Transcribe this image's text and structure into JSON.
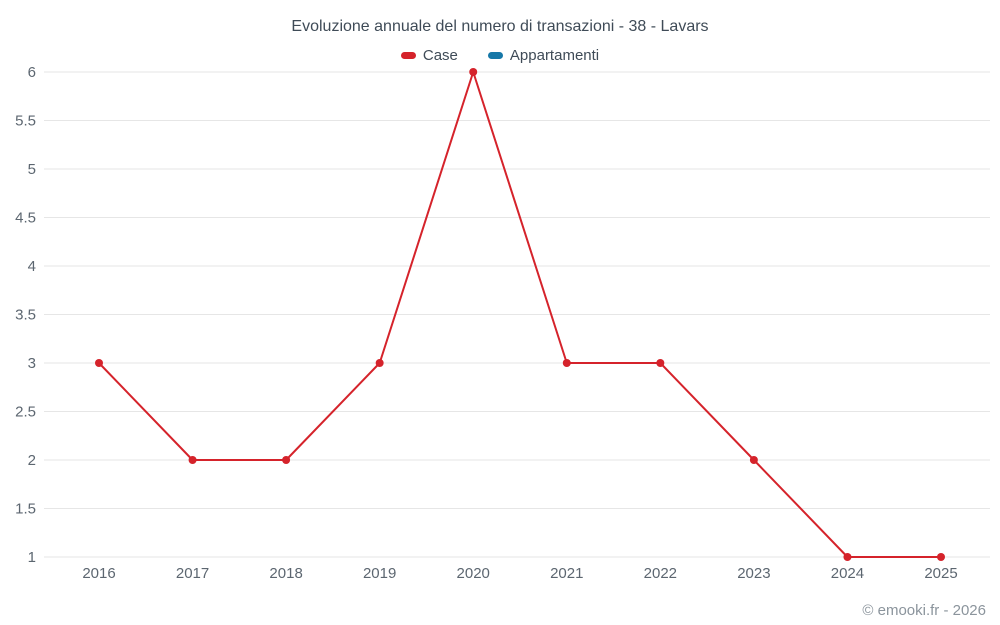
{
  "chart_data": {
    "type": "line",
    "title": "Evoluzione annuale del numero di transazioni - 38 - Lavars",
    "categories": [
      "2016",
      "2017",
      "2018",
      "2019",
      "2020",
      "2021",
      "2022",
      "2023",
      "2024",
      "2025"
    ],
    "series": [
      {
        "name": "Case",
        "color": "#d5232b",
        "values": [
          3,
          2,
          2,
          3,
          6,
          3,
          3,
          2,
          1,
          1
        ]
      },
      {
        "name": "Appartamenti",
        "color": "#1678a8",
        "values": []
      }
    ],
    "xlabel": "",
    "ylabel": "",
    "ylim": [
      1,
      6
    ],
    "ytick_step": 0.5,
    "grid": true,
    "legend_position": "top",
    "grid_color": "#e6e6e6"
  },
  "footer": {
    "credit": "© emooki.fr - 2026"
  }
}
